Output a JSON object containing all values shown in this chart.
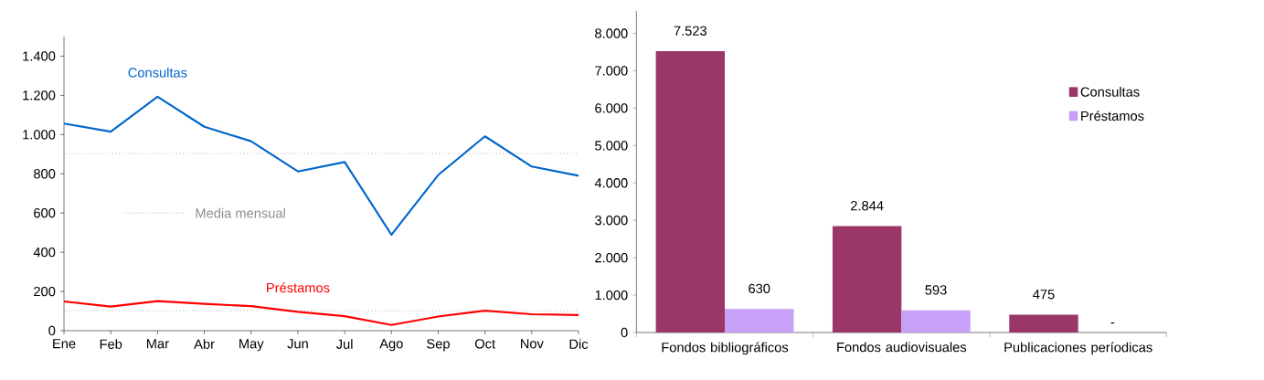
{
  "chart_data": [
    {
      "type": "line",
      "categories": [
        "Ene",
        "Feb",
        "Mar",
        "Abr",
        "May",
        "Jun",
        "Jul",
        "Ago",
        "Sep",
        "Oct",
        "Nov",
        "Dic"
      ],
      "series": [
        {
          "name": "Consultas",
          "color": "#0066cc",
          "values": [
            1056,
            1015,
            1193,
            1040,
            966,
            812,
            860,
            489,
            794,
            991,
            837,
            790
          ]
        },
        {
          "name": "Préstamos",
          "color": "#ff0000",
          "values": [
            149,
            123,
            151,
            137,
            125,
            96,
            74,
            29,
            72,
            102,
            84,
            80
          ]
        }
      ],
      "ylim": [
        0,
        1500
      ],
      "yticks": [
        0,
        200,
        400,
        600,
        800,
        {
          "value": 1000,
          "label": "1.000"
        },
        {
          "value": 1200,
          "label": "1.200"
        },
        {
          "value": 1400,
          "label": "1.400"
        }
      ],
      "ref_lines": [
        {
          "axis": "y",
          "value": 903,
          "color": "#606060",
          "line_style": "dotted"
        },
        {
          "axis": "y",
          "value": 102,
          "color": "#606060",
          "line_style": "dotted"
        }
      ],
      "annotations": [
        "Media mensual"
      ],
      "line_style": "solid"
    },
    {
      "type": "bar",
      "categories": [
        "Fondos bibliográficos",
        "Fondos audiovisuales",
        "Publicaciones períodicas"
      ],
      "series": [
        {
          "name": "Consultas",
          "color": "#9b3768",
          "values": [
            7523,
            2844,
            475
          ],
          "value_labels": [
            "7.523",
            "2.844",
            "475"
          ]
        },
        {
          "name": "Préstamos",
          "color": "#c9a0f8",
          "values": [
            630,
            593,
            null
          ],
          "value_labels": [
            "630",
            "593",
            "-"
          ]
        }
      ],
      "ylim": [
        0,
        8600
      ],
      "yticks": [
        0,
        {
          "value": 1000,
          "label": "1.000"
        },
        {
          "value": 2000,
          "label": "2.000"
        },
        {
          "value": 3000,
          "label": "3.000"
        },
        {
          "value": 4000,
          "label": "4.000"
        },
        {
          "value": 5000,
          "label": "5.000"
        },
        {
          "value": 6000,
          "label": "6.000"
        },
        {
          "value": 7000,
          "label": "7.000"
        },
        {
          "value": 8000,
          "label": "8.000"
        }
      ],
      "legend": "right"
    }
  ]
}
